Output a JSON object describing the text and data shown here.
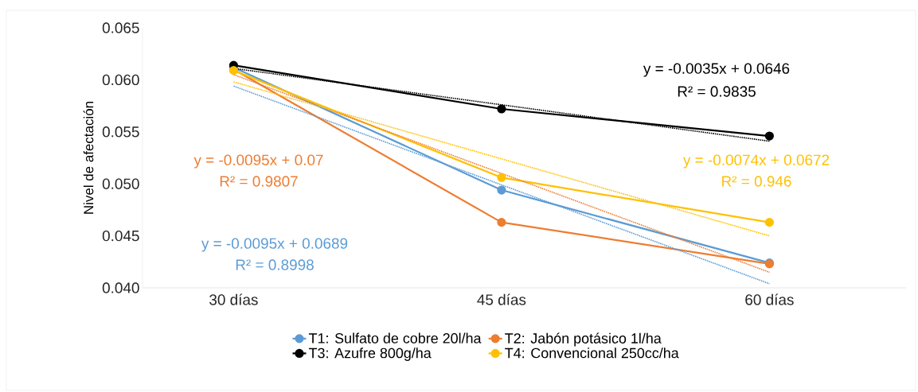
{
  "chart_data": {
    "type": "line",
    "ylabel": "Nivel de afectación",
    "categories": [
      "30 días",
      "45 días",
      "60 días"
    ],
    "series": [
      {
        "name": "T1: Sulfato de cobre 20l/ha",
        "color": "#5b9bd5",
        "values": [
          0.0612,
          0.0494,
          0.0424
        ]
      },
      {
        "name": "T2: Jabón potásico 1l/ha",
        "color": "#ed7d31",
        "values": [
          0.061,
          0.0463,
          0.0423
        ]
      },
      {
        "name": "T3: Azufre 800g/ha",
        "color": "#000000",
        "values": [
          0.0614,
          0.0572,
          0.0546
        ]
      },
      {
        "name": "T4: Convencional 250cc/ha",
        "color": "#ffc000",
        "values": [
          0.0609,
          0.0506,
          0.0463
        ]
      },
      {
        "type": "line",
        "color": "#5b9bd5",
        "line_style": "dotted",
        "marker": "none",
        "values": [
          0.0594,
          0.0499,
          0.0404
        ]
      },
      {
        "type": "line",
        "color": "#ed7d31",
        "line_style": "dotted",
        "marker": "none",
        "values": [
          0.0605,
          0.051,
          0.0415
        ]
      },
      {
        "type": "line",
        "color": "#000000",
        "line_style": "dotted",
        "marker": "none",
        "values": [
          0.0611,
          0.0576,
          0.0541
        ]
      },
      {
        "type": "line",
        "color": "#ffc000",
        "line_style": "dotted",
        "marker": "none",
        "values": [
          0.0598,
          0.0524,
          0.045
        ]
      }
    ],
    "ylim": [
      0.04,
      0.065
    ],
    "yticks": [
      {
        "value": 0.04,
        "label": "0.040"
      },
      {
        "value": 0.045,
        "label": "0.045"
      },
      {
        "value": 0.05,
        "label": "0.050"
      },
      {
        "value": 0.055,
        "label": "0.055"
      },
      {
        "value": 0.06,
        "label": "0.060"
      },
      {
        "value": 0.065,
        "label": "0.065"
      }
    ],
    "marker": "circle",
    "line_style": "solid",
    "grid": false,
    "legend": "bottom",
    "annotations": [
      "y = -0.0035x + 0.0646",
      "R² = 0.9835",
      "y = -0.0095x + 0.07",
      "R² = 0.9807",
      "y = -0.0074x + 0.0672",
      "R² = 0.946",
      "y = -0.0095x + 0.0689",
      "R² = 0.8998"
    ]
  }
}
